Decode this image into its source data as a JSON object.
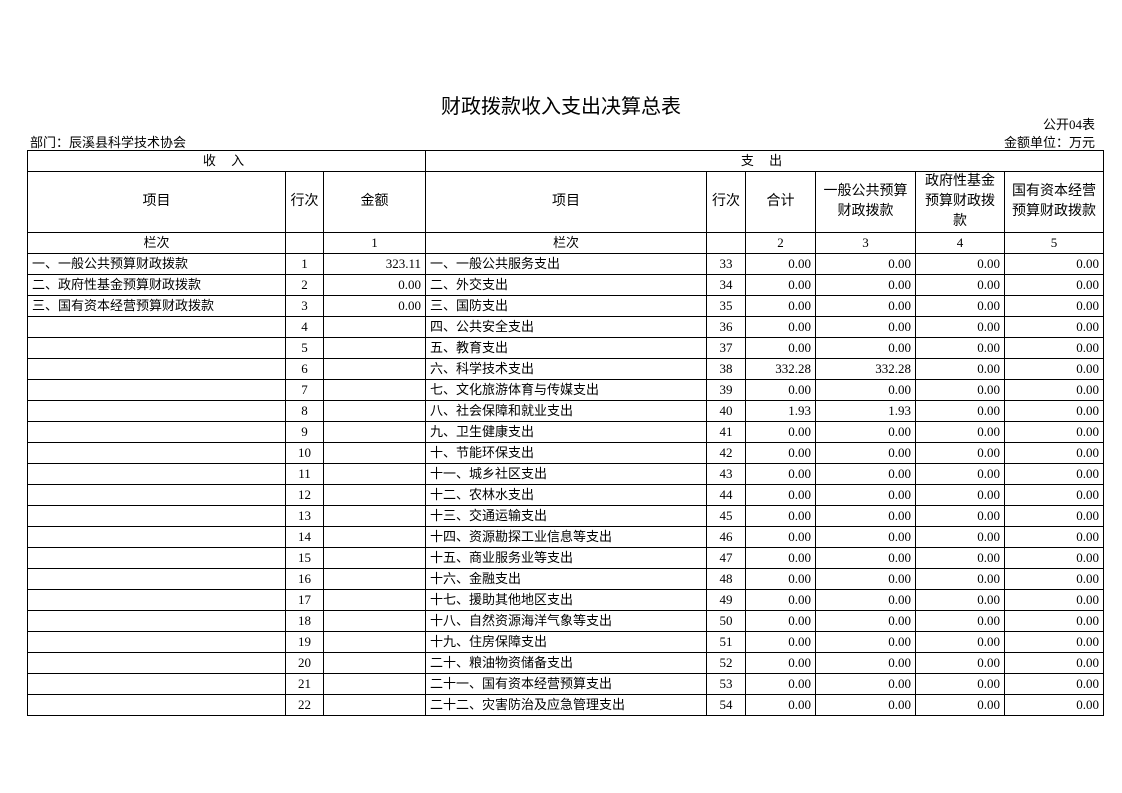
{
  "header": {
    "title": "财政拨款收入支出决算总表",
    "code": "公开04表",
    "department": "部门：辰溪县科学技术协会",
    "unit": "金额单位：万元"
  },
  "table": {
    "sections": [
      "收 入",
      "支 出"
    ],
    "columns": [
      "项目",
      "行次",
      "金额",
      "项目",
      "行次",
      "合计",
      "一般公共预算财政拨款",
      "政府性基金预算财政拨款",
      "国有资本经营预算财政拨款"
    ],
    "index_row": {
      "income_label": "栏次",
      "income_amount": "1",
      "expense_label": "栏次",
      "total": "2",
      "general": "3",
      "fund": "4",
      "state": "5"
    },
    "rows": [
      [
        "一、一般公共预算财政拨款",
        "1",
        "323.11",
        "一、一般公共服务支出",
        "33",
        "0.00",
        "0.00",
        "0.00",
        "0.00"
      ],
      [
        "二、政府性基金预算财政拨款",
        "2",
        "0.00",
        "二、外交支出",
        "34",
        "0.00",
        "0.00",
        "0.00",
        "0.00"
      ],
      [
        "三、国有资本经营预算财政拨款",
        "3",
        "0.00",
        "三、国防支出",
        "35",
        "0.00",
        "0.00",
        "0.00",
        "0.00"
      ],
      [
        null,
        "4",
        null,
        "四、公共安全支出",
        "36",
        "0.00",
        "0.00",
        "0.00",
        "0.00"
      ],
      [
        null,
        "5",
        null,
        "五、教育支出",
        "37",
        "0.00",
        "0.00",
        "0.00",
        "0.00"
      ],
      [
        null,
        "6",
        null,
        "六、科学技术支出",
        "38",
        "332.28",
        "332.28",
        "0.00",
        "0.00"
      ],
      [
        null,
        "7",
        null,
        "七、文化旅游体育与传媒支出",
        "39",
        "0.00",
        "0.00",
        "0.00",
        "0.00"
      ],
      [
        null,
        "8",
        null,
        "八、社会保障和就业支出",
        "40",
        "1.93",
        "1.93",
        "0.00",
        "0.00"
      ],
      [
        null,
        "9",
        null,
        "九、卫生健康支出",
        "41",
        "0.00",
        "0.00",
        "0.00",
        "0.00"
      ],
      [
        null,
        "10",
        null,
        "十、节能环保支出",
        "42",
        "0.00",
        "0.00",
        "0.00",
        "0.00"
      ],
      [
        null,
        "11",
        null,
        "十一、城乡社区支出",
        "43",
        "0.00",
        "0.00",
        "0.00",
        "0.00"
      ],
      [
        null,
        "12",
        null,
        "十二、农林水支出",
        "44",
        "0.00",
        "0.00",
        "0.00",
        "0.00"
      ],
      [
        null,
        "13",
        null,
        "十三、交通运输支出",
        "45",
        "0.00",
        "0.00",
        "0.00",
        "0.00"
      ],
      [
        null,
        "14",
        null,
        "十四、资源勘探工业信息等支出",
        "46",
        "0.00",
        "0.00",
        "0.00",
        "0.00"
      ],
      [
        null,
        "15",
        null,
        "十五、商业服务业等支出",
        "47",
        "0.00",
        "0.00",
        "0.00",
        "0.00"
      ],
      [
        null,
        "16",
        null,
        "十六、金融支出",
        "48",
        "0.00",
        "0.00",
        "0.00",
        "0.00"
      ],
      [
        null,
        "17",
        null,
        "十七、援助其他地区支出",
        "49",
        "0.00",
        "0.00",
        "0.00",
        "0.00"
      ],
      [
        null,
        "18",
        null,
        "十八、自然资源海洋气象等支出",
        "50",
        "0.00",
        "0.00",
        "0.00",
        "0.00"
      ],
      [
        null,
        "19",
        null,
        "十九、住房保障支出",
        "51",
        "0.00",
        "0.00",
        "0.00",
        "0.00"
      ],
      [
        null,
        "20",
        null,
        "二十、粮油物资储备支出",
        "52",
        "0.00",
        "0.00",
        "0.00",
        "0.00"
      ],
      [
        null,
        "21",
        null,
        "二十一、国有资本经营预算支出",
        "53",
        "0.00",
        "0.00",
        "0.00",
        "0.00"
      ],
      [
        null,
        "22",
        null,
        "二十二、灾害防治及应急管理支出",
        "54",
        "0.00",
        "0.00",
        "0.00",
        "0.00"
      ]
    ]
  }
}
